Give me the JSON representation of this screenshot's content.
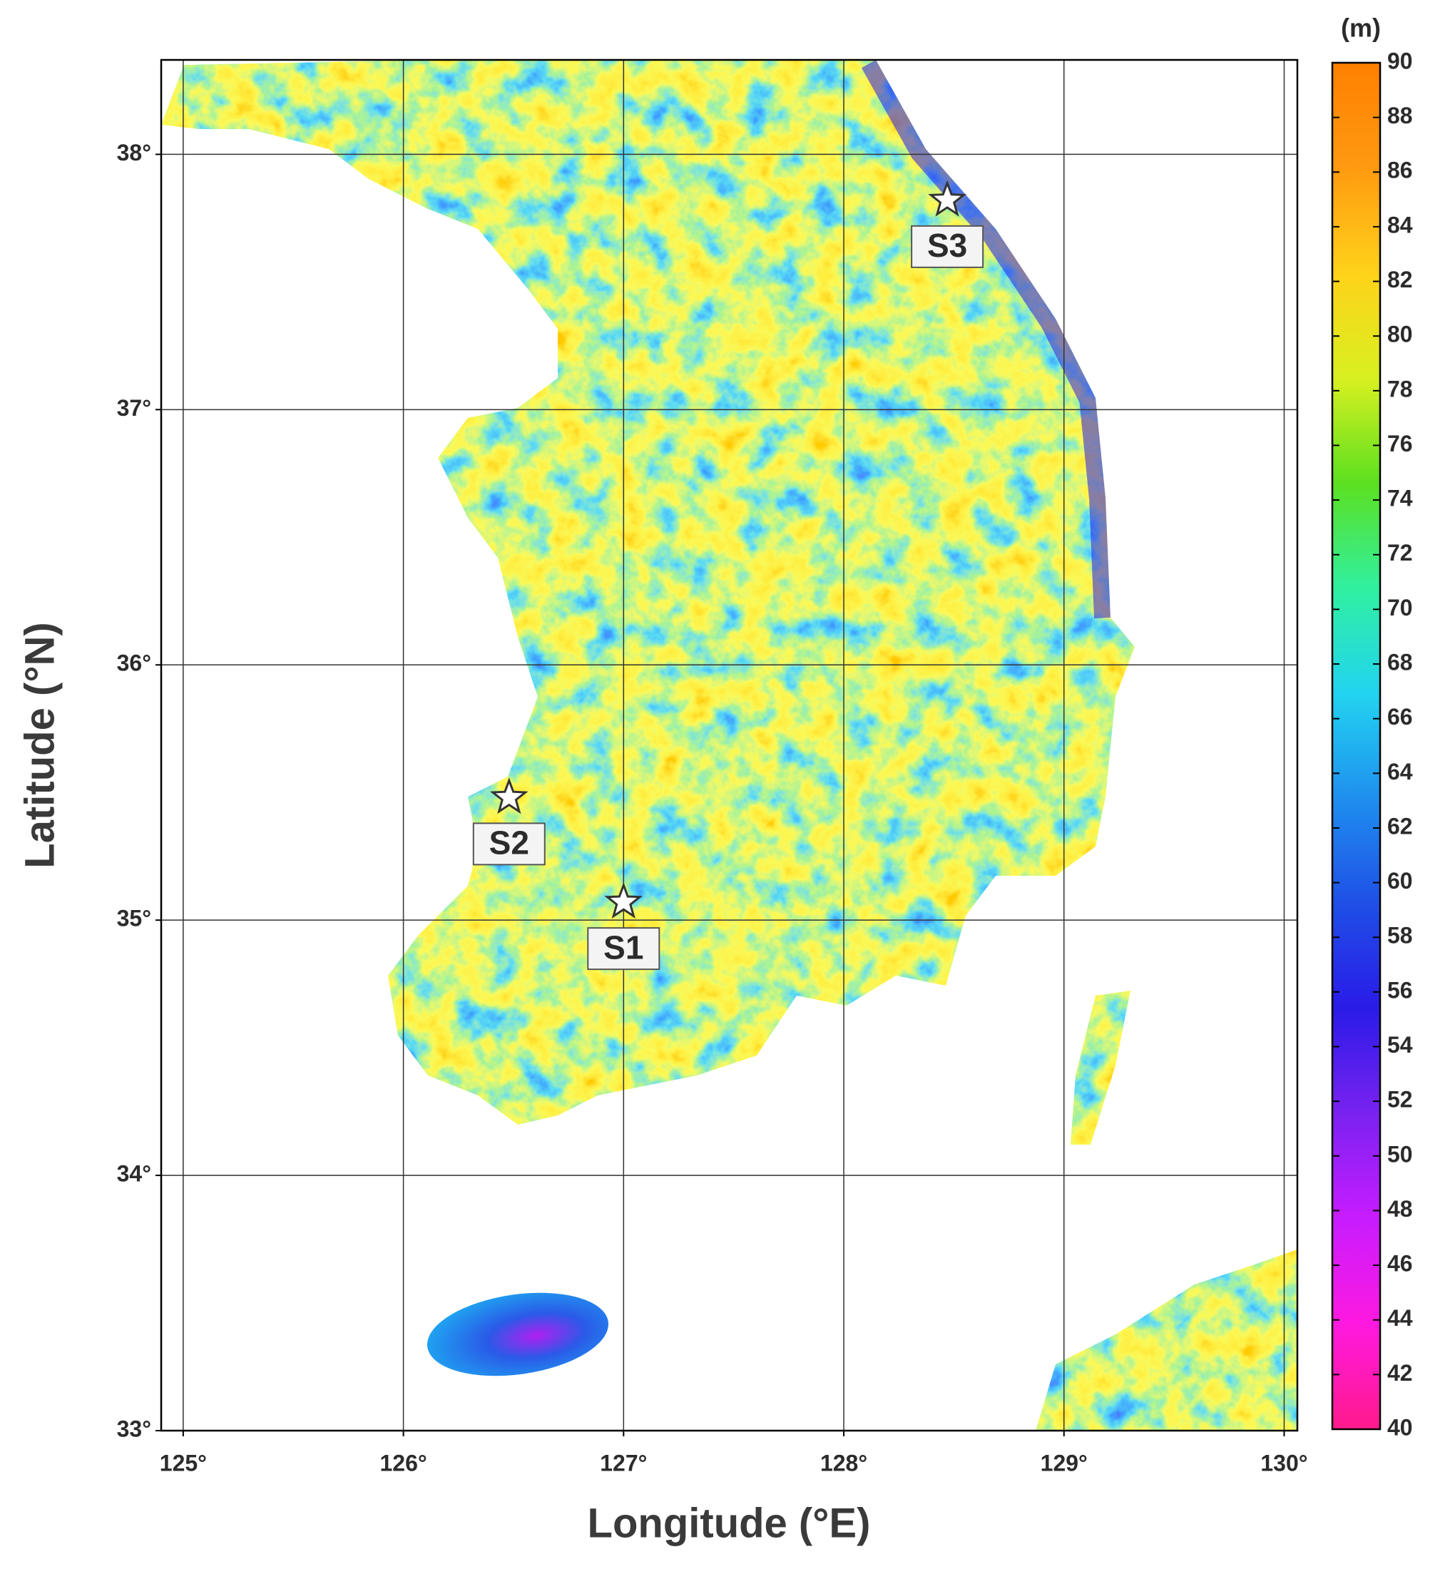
{
  "chart_data": {
    "type": "map",
    "xlabel": "Longitude (°E)",
    "ylabel": "Latitude (°N)",
    "xlim": [
      124.9,
      130.06
    ],
    "ylim": [
      33.0,
      38.37
    ],
    "xticks": [
      {
        "value": 125,
        "label": "125°"
      },
      {
        "value": 126,
        "label": "126°"
      },
      {
        "value": 127,
        "label": "127°"
      },
      {
        "value": 128,
        "label": "128°"
      },
      {
        "value": 129,
        "label": "129°"
      },
      {
        "value": 130,
        "label": "130°"
      }
    ],
    "yticks": [
      {
        "value": 33,
        "label": "33°"
      },
      {
        "value": 34,
        "label": "34°"
      },
      {
        "value": 35,
        "label": "35°"
      },
      {
        "value": 36,
        "label": "36°"
      },
      {
        "value": 37,
        "label": "37°"
      },
      {
        "value": 38,
        "label": "38°"
      }
    ],
    "grid": true,
    "stations": [
      {
        "label": "S1",
        "x": 127.0,
        "y": 35.07
      },
      {
        "label": "S2",
        "x": 126.48,
        "y": 35.48
      },
      {
        "label": "S3",
        "x": 128.47,
        "y": 37.82
      }
    ],
    "colorbar": {
      "title": "(m)",
      "lim": [
        40,
        90
      ],
      "ticks": [
        40,
        42,
        44,
        46,
        48,
        50,
        52,
        54,
        56,
        58,
        60,
        62,
        64,
        66,
        68,
        70,
        72,
        74,
        76,
        78,
        80,
        82,
        84,
        86,
        88,
        90
      ],
      "colors": [
        "#ff1a8c",
        "#ff19e0",
        "#c81cff",
        "#7a22f0",
        "#2a1be8",
        "#1f4fe6",
        "#1f8fef",
        "#22d4f0",
        "#30f0a0",
        "#5ce020",
        "#d8f020",
        "#ffd21a",
        "#ff9a10",
        "#ff8000"
      ]
    }
  }
}
